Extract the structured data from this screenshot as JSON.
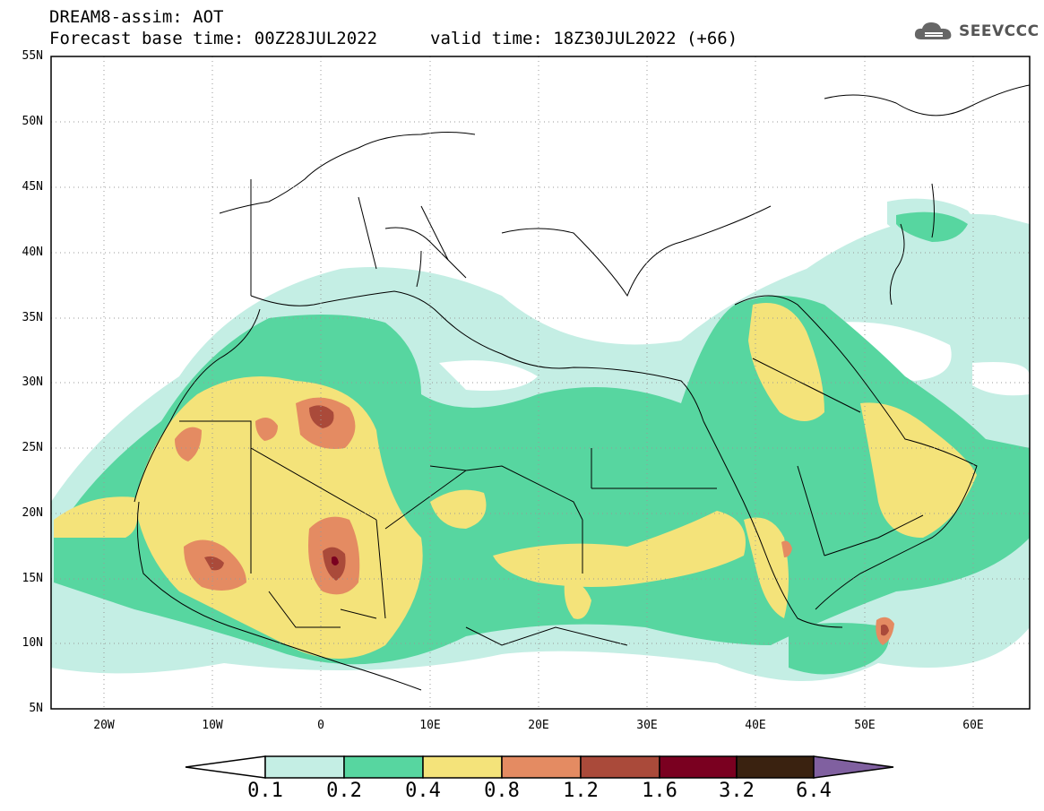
{
  "header": {
    "line1": "DREAM8-assim: AOT",
    "line2": "Forecast base time: 00Z28JUL2022",
    "line3": "valid time: 18Z30JUL2022 (+66)"
  },
  "logo": {
    "text": "SEEVCCC",
    "icon": "cloud-icon"
  },
  "map": {
    "lat_labels": [
      "55N",
      "50N",
      "45N",
      "40N",
      "35N",
      "30N",
      "25N",
      "20N",
      "15N",
      "10N",
      "5N"
    ],
    "lon_labels": [
      "20W",
      "10W",
      "0",
      "10E",
      "20E",
      "30E",
      "40E",
      "50E",
      "60E"
    ],
    "lat_range": [
      5,
      55
    ],
    "lon_range": [
      -25,
      65
    ],
    "gridlines": "dotted"
  },
  "colorbar": {
    "labels": [
      "0.1",
      "0.2",
      "0.4",
      "0.8",
      "1.2",
      "1.6",
      "3.2",
      "6.4"
    ],
    "colors": [
      "#ffffff",
      "#c4eee4",
      "#57d6a0",
      "#f4e37a",
      "#e48b62",
      "#aa4a3a",
      "#7a0020",
      "#3a2210",
      "#8060a0"
    ]
  },
  "colors": {
    "light": "#c4eee4",
    "green": "#57d6a0",
    "yellow": "#f4e37a",
    "orange": "#e48b62",
    "brown": "#aa4a3a",
    "maroon": "#7a0020"
  }
}
